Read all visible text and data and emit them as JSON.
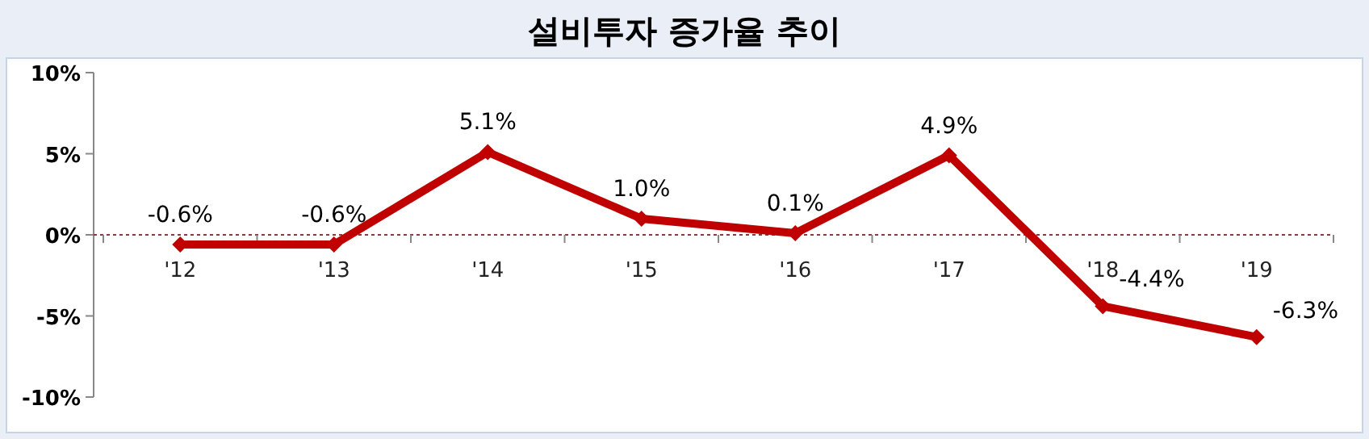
{
  "chart_data": {
    "type": "line",
    "title": "설비투자 증가율 추이",
    "categories": [
      "'12",
      "'13",
      "'14",
      "'15",
      "'16",
      "'17",
      "'18",
      "'19"
    ],
    "series": [
      {
        "color": "#c00000",
        "values": [
          -0.6,
          -0.6,
          5.1,
          1.0,
          0.1,
          4.9,
          -4.4,
          -6.3
        ],
        "value_labels": [
          "-0.6%",
          "-0.6%",
          "5.1%",
          "1.0%",
          "0.1%",
          "4.9%",
          "-4.4%",
          "-6.3%"
        ]
      }
    ],
    "ylim": [
      -10,
      10
    ],
    "yticks": [
      {
        "value": -10,
        "label": "-10%"
      },
      {
        "value": -5,
        "label": "-5%"
      },
      {
        "value": 0,
        "label": "0%"
      },
      {
        "value": 5,
        "label": "5%"
      },
      {
        "value": 10,
        "label": "10%"
      }
    ],
    "ref_lines": [
      {
        "axis": "y",
        "value": 0,
        "color": "#8b3a3a",
        "line_style": "dotted"
      }
    ],
    "marker": "diamond",
    "line_style": "solid",
    "grid": false
  }
}
